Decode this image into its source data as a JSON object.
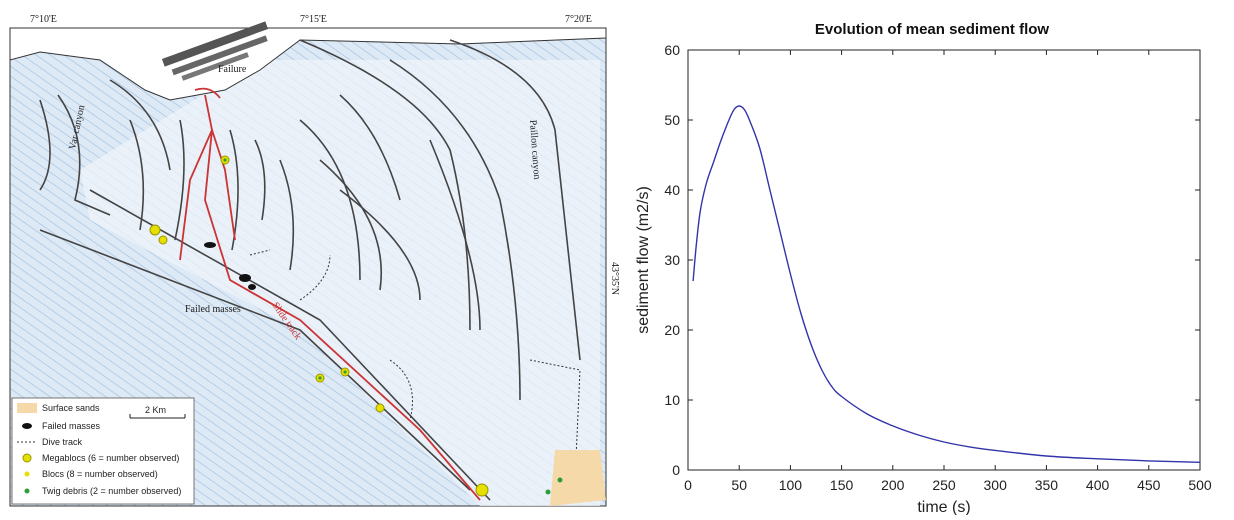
{
  "map": {
    "lon_labels": [
      "7°10'E",
      "7°15'E",
      "7°20'E"
    ],
    "lat_label": "43°35'N",
    "labels": {
      "failure": "Failure",
      "var_canyon": "Var canyon",
      "paillon_canyon": "Paillon canyon",
      "failed_masses": "Failed masses",
      "slide_track": "Slide track"
    },
    "scale_bar": "2 Km",
    "legend": [
      {
        "key": "surface_sands",
        "text": "Surface sands"
      },
      {
        "key": "failed_masses",
        "text": "Failed masses"
      },
      {
        "key": "dive_track",
        "text": "Dive track"
      },
      {
        "key": "megablocs",
        "text": "Megablocs (6 = number observed)"
      },
      {
        "key": "blocs",
        "text": "Blocs (8 = number observed)"
      },
      {
        "key": "twig_debris",
        "text": "Twig debris (2 = number observed)"
      }
    ],
    "colors": {
      "bathymetry": "#a8c6e6",
      "sands": "#f6d9a8",
      "track": "#cc3333",
      "megabloc": "#e6e000",
      "twig": "#2e9e3a"
    }
  },
  "chart_data": {
    "type": "line",
    "title": "Evolution of mean sediment flow",
    "xlabel": "time (s)",
    "ylabel": "sediment flow (m2/s)",
    "xlim": [
      0,
      500
    ],
    "ylim": [
      0,
      60
    ],
    "xticks": [
      0,
      50,
      100,
      150,
      200,
      250,
      300,
      350,
      400,
      450,
      500
    ],
    "yticks": [
      0,
      10,
      20,
      30,
      40,
      50,
      60
    ],
    "grid": false,
    "line_color": "#3333aa",
    "x": [
      5,
      8,
      12,
      18,
      25,
      32,
      40,
      45,
      50,
      55,
      60,
      70,
      80,
      90,
      100,
      110,
      120,
      130,
      140,
      150,
      175,
      200,
      225,
      250,
      275,
      300,
      350,
      400,
      450,
      500
    ],
    "y": [
      27,
      32,
      37,
      41,
      44,
      47,
      50,
      51.5,
      52,
      51.5,
      50,
      46,
      40,
      34,
      28,
      22.5,
      18,
      14.5,
      12,
      10.5,
      8,
      6.3,
      5,
      4,
      3.3,
      2.8,
      2,
      1.6,
      1.3,
      1.1
    ]
  }
}
